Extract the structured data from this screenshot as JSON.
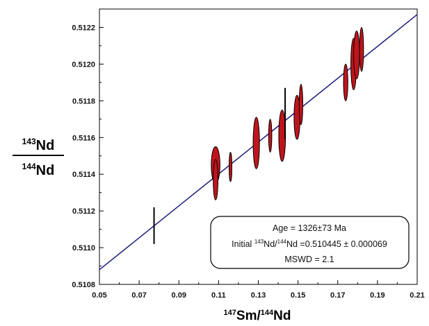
{
  "chart_data": {
    "type": "scatter",
    "x_axis": {
      "label": {
        "sup1": "147",
        "main1": "Sm/",
        "sup2": "144",
        "main2": "Nd"
      },
      "range": [
        0.05,
        0.21
      ],
      "ticks": [
        "0.05",
        "0.07",
        "0.09",
        "0.11",
        "0.13",
        "0.15",
        "0.17",
        "0.19",
        "0.21"
      ]
    },
    "y_axis": {
      "label_numerator": {
        "sup": "143",
        "main": "Nd"
      },
      "label_denominator": {
        "sup": "144",
        "main": "Nd"
      },
      "range": [
        0.5108,
        0.5123
      ],
      "ticks": [
        "0.5108",
        "0.5110",
        "0.5112",
        "0.5114",
        "0.5116",
        "0.5118",
        "0.5120",
        "0.5122"
      ]
    },
    "isochron_line": {
      "x": [
        0.05,
        0.21
      ],
      "y": [
        0.51088,
        0.51227
      ],
      "color": "#1a1a7a"
    },
    "points": [
      {
        "x": 0.0775,
        "y": 0.51112,
        "rx": 0.0005,
        "ry": 0.0001,
        "fill": "none"
      },
      {
        "x": 0.1085,
        "y": 0.51145,
        "rx": 0.0022,
        "ry": 0.0001,
        "fill": "#c0141c"
      },
      {
        "x": 0.1085,
        "y": 0.51137,
        "rx": 0.0012,
        "ry": 0.00011,
        "fill": "#c0141c"
      },
      {
        "x": 0.116,
        "y": 0.51144,
        "rx": 0.0007,
        "ry": 8e-05,
        "fill": "#c0141c"
      },
      {
        "x": 0.129,
        "y": 0.51157,
        "rx": 0.0016,
        "ry": 0.00014,
        "fill": "#c0141c"
      },
      {
        "x": 0.136,
        "y": 0.51161,
        "rx": 0.0008,
        "ry": 9e-05,
        "fill": "#c0141c"
      },
      {
        "x": 0.142,
        "y": 0.51161,
        "rx": 0.0017,
        "ry": 0.00014,
        "fill": "#c0141c"
      },
      {
        "x": 0.1435,
        "y": 0.51173,
        "rx": 0.0004,
        "ry": 0.00014,
        "fill": "none"
      },
      {
        "x": 0.1495,
        "y": 0.51171,
        "rx": 0.0015,
        "ry": 0.00012,
        "fill": "#c0141c"
      },
      {
        "x": 0.1515,
        "y": 0.51178,
        "rx": 0.0009,
        "ry": 0.00011,
        "fill": "#c0141c"
      },
      {
        "x": 0.174,
        "y": 0.5119,
        "rx": 0.0011,
        "ry": 0.0001,
        "fill": "#c0141c"
      },
      {
        "x": 0.178,
        "y": 0.512,
        "rx": 0.0014,
        "ry": 0.00014,
        "fill": "#c0141c"
      },
      {
        "x": 0.1795,
        "y": 0.51205,
        "rx": 0.0015,
        "ry": 0.00013,
        "fill": "#c0141c"
      },
      {
        "x": 0.182,
        "y": 0.51208,
        "rx": 0.001,
        "ry": 0.00012,
        "fill": "#c0141c"
      }
    ],
    "annotation": {
      "line1": "Age = 1326±73 Ma",
      "line2_prefix": "Initial ",
      "line2_sup1": "143",
      "line2_mid": "Nd/",
      "line2_sup2": "144",
      "line2_suffix": "Nd =0.510445 ± 0.000069",
      "line3": "MSWD = 2.1"
    },
    "grid": false
  }
}
